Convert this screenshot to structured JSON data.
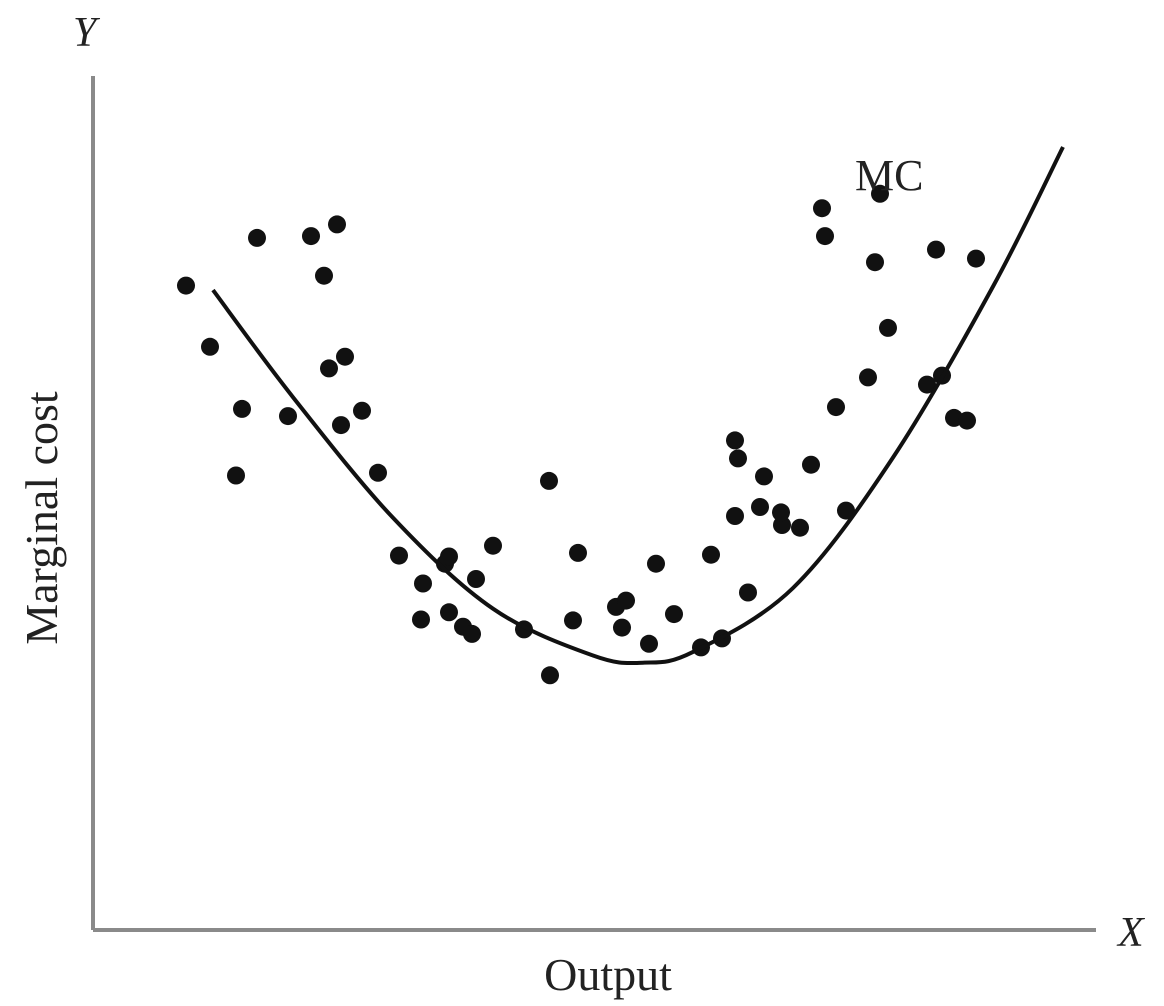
{
  "chart_data": {
    "type": "scatter",
    "title": "",
    "xlabel": "Output",
    "ylabel": "Marginal cost",
    "x_axis_letter": "X",
    "y_axis_letter": "Y",
    "xlim": [
      0,
      100
    ],
    "ylim": [
      0,
      100
    ],
    "grid": false,
    "ticks": false,
    "colors": {
      "points": "#111111",
      "curve": "#111111",
      "axes": "#8a8a8a"
    },
    "series": [
      {
        "type": "scatter",
        "points": [
          [
            9.3,
            71.6
          ],
          [
            11.7,
            64.8
          ],
          [
            14.9,
            57.9
          ],
          [
            14.3,
            50.5
          ],
          [
            16.4,
            76.9
          ],
          [
            19.5,
            57.1
          ],
          [
            21.8,
            77.1
          ],
          [
            23.1,
            72.7
          ],
          [
            23.6,
            62.4
          ],
          [
            24.4,
            78.4
          ],
          [
            24.8,
            56.1
          ],
          [
            25.2,
            63.7
          ],
          [
            26.9,
            57.7
          ],
          [
            28.5,
            50.8
          ],
          [
            30.6,
            41.6
          ],
          [
            33.0,
            38.5
          ],
          [
            35.2,
            40.7
          ],
          [
            32.8,
            34.5
          ],
          [
            35.6,
            41.5
          ],
          [
            35.6,
            35.3
          ],
          [
            37.0,
            33.7
          ],
          [
            37.9,
            32.9
          ],
          [
            40.0,
            42.7
          ],
          [
            38.3,
            39.0
          ],
          [
            43.1,
            33.4
          ],
          [
            45.6,
            49.9
          ],
          [
            45.7,
            28.3
          ],
          [
            48.5,
            41.9
          ],
          [
            48.0,
            34.4
          ],
          [
            52.3,
            35.9
          ],
          [
            52.9,
            33.6
          ],
          [
            53.3,
            36.6
          ],
          [
            56.3,
            40.7
          ],
          [
            55.6,
            31.8
          ],
          [
            58.1,
            35.1
          ],
          [
            61.8,
            41.7
          ],
          [
            60.8,
            31.4
          ],
          [
            62.9,
            32.4
          ],
          [
            64.2,
            54.4
          ],
          [
            64.5,
            52.4
          ],
          [
            64.2,
            46.0
          ],
          [
            65.5,
            37.5
          ],
          [
            66.7,
            47.0
          ],
          [
            67.1,
            50.4
          ],
          [
            68.9,
            45.0
          ],
          [
            68.8,
            46.4
          ],
          [
            70.7,
            44.7
          ],
          [
            71.8,
            51.7
          ],
          [
            72.9,
            80.2
          ],
          [
            73.2,
            77.1
          ],
          [
            74.3,
            58.1
          ],
          [
            75.3,
            46.6
          ],
          [
            77.5,
            61.4
          ],
          [
            78.2,
            74.2
          ],
          [
            78.7,
            81.8
          ],
          [
            79.5,
            66.9
          ],
          [
            84.3,
            75.6
          ],
          [
            83.4,
            60.6
          ],
          [
            84.9,
            61.6
          ],
          [
            86.1,
            56.9
          ],
          [
            87.4,
            56.6
          ],
          [
            88.3,
            74.6
          ]
        ]
      },
      {
        "name": "MC",
        "type": "line",
        "x": [
          12,
          20,
          30,
          40,
          50,
          55,
          60,
          70,
          80,
          90,
          97
        ],
        "y": [
          71.1,
          59.2,
          45.8,
          35.7,
          30.5,
          29.7,
          30.9,
          38.0,
          52.5,
          71.5,
          87.0
        ]
      }
    ]
  }
}
